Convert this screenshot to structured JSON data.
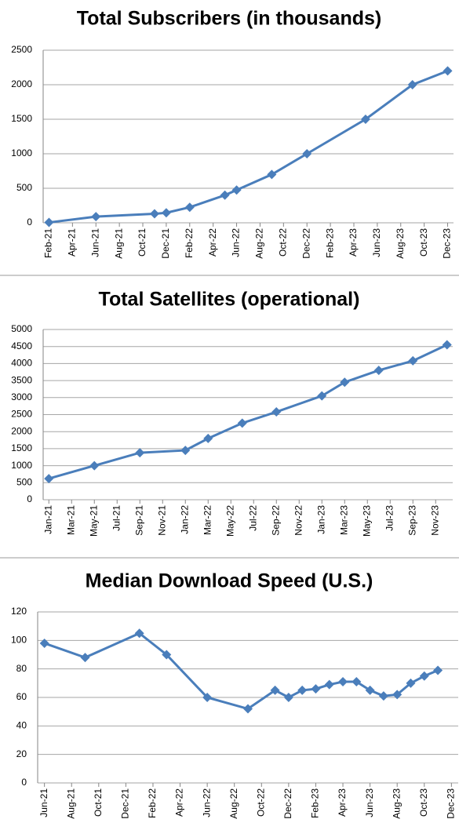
{
  "chart_data": [
    {
      "type": "line",
      "title": "Total Subscribers (in thousands)",
      "x": [
        "Feb-21",
        "Jun-21",
        "Nov-21",
        "Dec-21",
        "Feb-22",
        "May-22",
        "Jun-22",
        "Sep-22",
        "Dec-22",
        "May-23",
        "Sep-23",
        "Dec-23"
      ],
      "values": [
        5,
        90,
        130,
        145,
        225,
        400,
        475,
        700,
        1000,
        1500,
        2000,
        2200
      ],
      "color": "#4a7ebb",
      "ylim": [
        0,
        2500
      ],
      "yticks": [
        0,
        500,
        1000,
        1500,
        2000,
        2500
      ],
      "xticks": [
        "Feb-21",
        "Apr-21",
        "Jun-21",
        "Aug-21",
        "Oct-21",
        "Dec-21",
        "Feb-22",
        "Apr-22",
        "Jun-22",
        "Aug-22",
        "Oct-22",
        "Dec-22",
        "Feb-23",
        "Apr-23",
        "Jun-23",
        "Aug-23",
        "Oct-23",
        "Dec-23"
      ],
      "grid": true
    },
    {
      "type": "line",
      "title": "Total Satellites (operational)",
      "x": [
        "Jan-21",
        "May-21",
        "Sep-21",
        "Jan-22",
        "Mar-22",
        "Jun-22",
        "Sep-22",
        "Jan-23",
        "Mar-23",
        "Jun-23",
        "Sep-23",
        "Dec-23"
      ],
      "values": [
        620,
        1000,
        1380,
        1450,
        1800,
        2250,
        2580,
        3050,
        3450,
        3800,
        4080,
        4550
      ],
      "color": "#4a7ebb",
      "ylim": [
        0,
        5000
      ],
      "yticks": [
        0,
        500,
        1000,
        1500,
        2000,
        2500,
        3000,
        3500,
        4000,
        4500,
        5000
      ],
      "xticks": [
        "Jan-21",
        "Mar-21",
        "May-21",
        "Jul-21",
        "Sep-21",
        "Nov-21",
        "Jan-22",
        "Mar-22",
        "May-22",
        "Jul-22",
        "Sep-22",
        "Nov-22",
        "Jan-23",
        "Mar-23",
        "May-23",
        "Jul-23",
        "Sep-23",
        "Nov-23"
      ],
      "grid": true
    },
    {
      "type": "line",
      "title": "Median Download Speed (U.S.)",
      "x": [
        "Jun-21",
        "Sep-21",
        "Jan-22",
        "Mar-22",
        "Jun-22",
        "Sep-22",
        "Nov-22",
        "Dec-22",
        "Jan-23",
        "Feb-23",
        "Mar-23",
        "Apr-23",
        "May-23",
        "Jun-23",
        "Jul-23",
        "Aug-23",
        "Sep-23",
        "Oct-23",
        "Nov-23"
      ],
      "values": [
        98,
        88,
        105,
        90,
        60,
        52,
        65,
        60,
        65,
        66,
        69,
        71,
        71,
        65,
        61,
        62,
        70,
        75,
        79
      ],
      "color": "#4a7ebb",
      "ylim": [
        0,
        120
      ],
      "yticks": [
        0,
        20,
        40,
        60,
        80,
        100,
        120
      ],
      "xticks": [
        "Jun-21",
        "Aug-21",
        "Oct-21",
        "Dec-21",
        "Feb-22",
        "Apr-22",
        "Jun-22",
        "Aug-22",
        "Oct-22",
        "Dec-22",
        "Feb-23",
        "Apr-23",
        "Jun-23",
        "Aug-23",
        "Oct-23",
        "Dec-23"
      ],
      "grid": true
    }
  ]
}
